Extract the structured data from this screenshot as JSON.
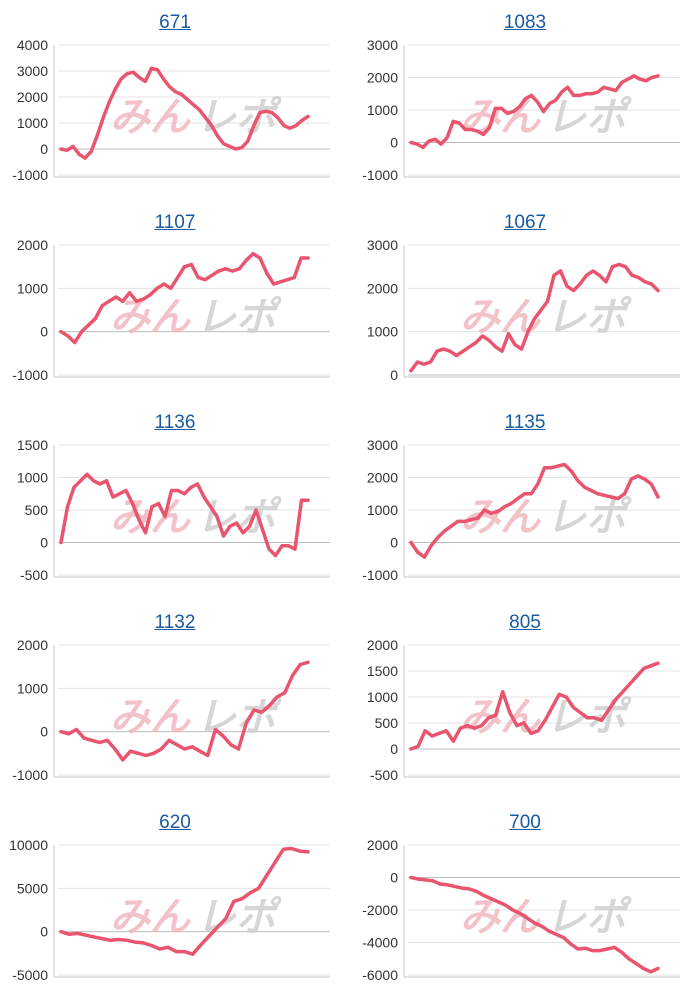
{
  "watermark": {
    "text_left": "みん",
    "text_right": "レポ",
    "color_left": "#f0b8bf",
    "color_right": "#cfcfcf"
  },
  "colors": {
    "line": "#e9556e",
    "grid": "#e3e3e3",
    "axis": "#c8c8c8",
    "link": "#1a5aa0"
  },
  "chart_data": [
    {
      "type": "line",
      "title": "671",
      "ylim": [
        -1000,
        4000
      ],
      "yticks": [
        -1000,
        0,
        1000,
        2000,
        3000,
        4000
      ],
      "series": [
        {
          "name": "671",
          "values": [
            0,
            -50,
            100,
            -200,
            -350,
            -100,
            500,
            1200,
            1800,
            2300,
            2700,
            2900,
            2950,
            2750,
            2600,
            3100,
            3050,
            2700,
            2400,
            2200,
            2100,
            1900,
            1700,
            1500,
            1200,
            900,
            500,
            200,
            100,
            0,
            50,
            300,
            900,
            1400,
            1450,
            1400,
            1200,
            900,
            800,
            900,
            1100,
            1250
          ]
        }
      ]
    },
    {
      "type": "line",
      "title": "1083",
      "ylim": [
        -1000,
        3000
      ],
      "yticks": [
        -1000,
        0,
        1000,
        2000,
        3000
      ],
      "series": [
        {
          "name": "1083",
          "values": [
            0,
            -50,
            -150,
            50,
            100,
            -50,
            150,
            650,
            600,
            400,
            400,
            350,
            250,
            450,
            1050,
            1050,
            900,
            950,
            1100,
            1350,
            1450,
            1250,
            950,
            1200,
            1300,
            1550,
            1700,
            1450,
            1450,
            1500,
            1500,
            1550,
            1700,
            1650,
            1600,
            1850,
            1950,
            2050,
            1950,
            1900,
            2000,
            2050
          ]
        }
      ]
    },
    {
      "type": "line",
      "title": "1107",
      "ylim": [
        -1000,
        2000
      ],
      "yticks": [
        -1000,
        0,
        1000,
        2000
      ],
      "series": [
        {
          "name": "1107",
          "values": [
            0,
            -100,
            -250,
            0,
            150,
            300,
            600,
            700,
            800,
            700,
            900,
            700,
            750,
            850,
            1000,
            1100,
            1000,
            1250,
            1500,
            1550,
            1250,
            1200,
            1300,
            1400,
            1450,
            1400,
            1450,
            1650,
            1800,
            1700,
            1350,
            1100,
            1150,
            1200,
            1250,
            1700,
            1700
          ]
        }
      ]
    },
    {
      "type": "line",
      "title": "1067",
      "ylim": [
        0,
        3000
      ],
      "yticks": [
        0,
        1000,
        2000,
        3000
      ],
      "series": [
        {
          "name": "1067",
          "values": [
            100,
            300,
            250,
            300,
            550,
            600,
            550,
            450,
            550,
            650,
            750,
            900,
            800,
            650,
            550,
            950,
            700,
            600,
            1000,
            1300,
            1500,
            1700,
            2300,
            2400,
            2050,
            1950,
            2100,
            2300,
            2400,
            2300,
            2150,
            2500,
            2550,
            2500,
            2300,
            2250,
            2150,
            2100,
            1950
          ]
        }
      ]
    },
    {
      "type": "line",
      "title": "1136",
      "ylim": [
        -500,
        1500
      ],
      "yticks": [
        -500,
        0,
        500,
        1000,
        1500
      ],
      "series": [
        {
          "name": "1136",
          "values": [
            0,
            550,
            850,
            950,
            1050,
            950,
            900,
            950,
            700,
            750,
            800,
            600,
            350,
            150,
            550,
            600,
            400,
            800,
            800,
            750,
            850,
            900,
            700,
            550,
            400,
            100,
            250,
            300,
            150,
            250,
            500,
            200,
            -100,
            -200,
            -50,
            -50,
            -100,
            650,
            650
          ]
        }
      ]
    },
    {
      "type": "line",
      "title": "1135",
      "ylim": [
        -1000,
        3000
      ],
      "yticks": [
        -1000,
        0,
        1000,
        2000,
        3000
      ],
      "series": [
        {
          "name": "1135",
          "values": [
            0,
            -300,
            -450,
            -100,
            150,
            350,
            500,
            650,
            650,
            700,
            750,
            1000,
            900,
            950,
            1100,
            1200,
            1350,
            1500,
            1500,
            1800,
            2300,
            2300,
            2350,
            2400,
            2200,
            1900,
            1700,
            1600,
            1500,
            1450,
            1400,
            1350,
            1500,
            1950,
            2050,
            1950,
            1800,
            1400
          ]
        }
      ]
    },
    {
      "type": "line",
      "title": "1132",
      "ylim": [
        -1000,
        2000
      ],
      "yticks": [
        -1000,
        0,
        1000,
        2000
      ],
      "series": [
        {
          "name": "1132",
          "values": [
            0,
            -50,
            50,
            -150,
            -200,
            -250,
            -200,
            -400,
            -650,
            -450,
            -500,
            -550,
            -500,
            -400,
            -200,
            -300,
            -400,
            -350,
            -450,
            -550,
            50,
            -100,
            -300,
            -400,
            200,
            500,
            450,
            600,
            800,
            900,
            1300,
            1550,
            1600
          ]
        }
      ]
    },
    {
      "type": "line",
      "title": "805",
      "ylim": [
        -500,
        2000
      ],
      "yticks": [
        -500,
        0,
        500,
        1000,
        1500,
        2000
      ],
      "series": [
        {
          "name": "805",
          "values": [
            0,
            50,
            350,
            250,
            300,
            350,
            150,
            400,
            450,
            400,
            450,
            600,
            650,
            1100,
            700,
            450,
            500,
            300,
            350,
            550,
            800,
            1050,
            1000,
            800,
            700,
            600,
            600,
            550,
            750,
            950,
            1100,
            1250,
            1400,
            1550,
            1600,
            1650
          ]
        }
      ]
    },
    {
      "type": "line",
      "title": "620",
      "ylim": [
        -5000,
        10000
      ],
      "yticks": [
        -5000,
        0,
        5000,
        10000
      ],
      "series": [
        {
          "name": "620",
          "values": [
            0,
            -300,
            -200,
            -400,
            -600,
            -800,
            -1000,
            -900,
            -1000,
            -1200,
            -1300,
            -1600,
            -2000,
            -1800,
            -2300,
            -2300,
            -2600,
            -1500,
            -500,
            500,
            1500,
            3500,
            3800,
            4500,
            5000,
            6500,
            8000,
            9500,
            9600,
            9300,
            9200
          ]
        }
      ]
    },
    {
      "type": "line",
      "title": "700",
      "ylim": [
        -6000,
        2000
      ],
      "yticks": [
        -6000,
        -4000,
        -2000,
        0,
        2000
      ],
      "series": [
        {
          "name": "700",
          "values": [
            0,
            -100,
            -150,
            -200,
            -400,
            -450,
            -550,
            -650,
            -700,
            -850,
            -1100,
            -1300,
            -1500,
            -1700,
            -2000,
            -2200,
            -2500,
            -2800,
            -3000,
            -3300,
            -3500,
            -3700,
            -4100,
            -4400,
            -4350,
            -4500,
            -4500,
            -4400,
            -4300,
            -4600,
            -5000,
            -5300,
            -5600,
            -5800,
            -5600
          ]
        }
      ]
    }
  ]
}
